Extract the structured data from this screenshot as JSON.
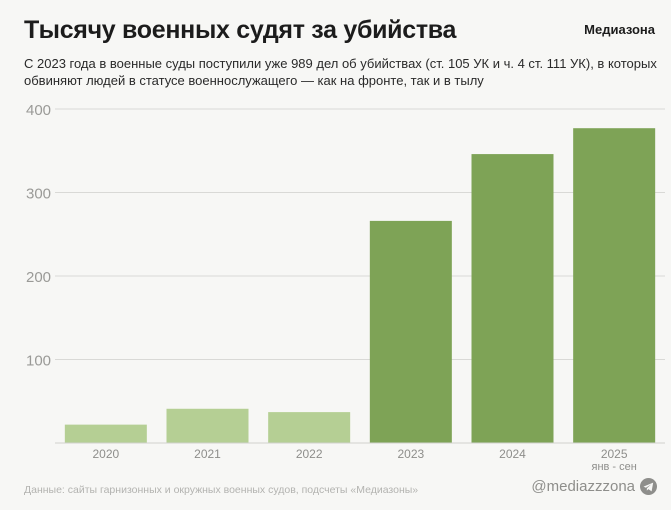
{
  "header": {
    "title": "Тысячу военных судят за убийства",
    "brand": "Медиазона",
    "subtitle": "С 2023 года в военные суды поступили уже 989 дел об убийствах (ст. 105 УК и ч. 4 ст. 111 УК), в которых обвиняют людей в статусе военнослужащего — как на фронте, так и в тылу"
  },
  "footer": {
    "source": "Данные: сайты гарнизонных и окружных военных судов, подсчеты «Медиазоны»",
    "handle": "@mediazzzona",
    "handle_icon": "telegram-icon"
  },
  "chart_data": {
    "type": "bar",
    "categories": [
      "2020",
      "2021",
      "2022",
      "2023",
      "2024",
      "2025"
    ],
    "category_sublabels": [
      "",
      "",
      "",
      "",
      "",
      "янв - сен"
    ],
    "values": [
      22,
      41,
      37,
      266,
      346,
      377
    ],
    "bar_colors": [
      "#b5cf94",
      "#b5cf94",
      "#b5cf94",
      "#7ea356",
      "#7ea356",
      "#7ea356"
    ],
    "title": "Тысячу военных судят за убийства",
    "xlabel": "",
    "ylabel": "",
    "ylim": [
      0,
      400
    ],
    "yticks": [
      100,
      200,
      300,
      400
    ],
    "grid": true,
    "legend": "none"
  }
}
